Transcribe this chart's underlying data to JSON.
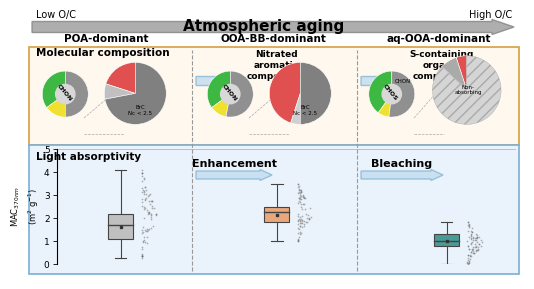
{
  "title": "Atmospheric aging",
  "low_oc": "Low O/C",
  "high_oc": "High O/C",
  "col1_label": "POA-dominant",
  "col2_label": "OOA-BB-dominant",
  "col3_label": "aq-OOA-dominant",
  "top_bg": "#fff8ee",
  "bottom_bg": "#eaf3fb",
  "top_border": "#d4a040",
  "bottom_border": "#7bafd4",
  "mol_comp_label": "Molecular composition",
  "light_abs_label": "Light absorptivity",
  "enhancement_label": "Enhancement",
  "bleaching_label": "Bleaching",
  "nitrated_label": "Nitrated\naromatic\ncompounds",
  "s_containing_label": "S-containing\norganic\ncompounds",
  "ylabel_top": "MAC₃₇₀nm(m² g⁻¹)",
  "box1": {
    "median": 1.7,
    "q1": 1.1,
    "q3": 2.2,
    "whisker_low": 0.25,
    "whisker_high": 4.1,
    "mean": 1.75,
    "color": "#c0c0c0"
  },
  "box2": {
    "median": 2.25,
    "q1": 1.85,
    "q3": 2.5,
    "whisker_low": 1.0,
    "whisker_high": 3.5,
    "mean": 2.2,
    "color": "#e8a87c"
  },
  "box3": {
    "median": 1.0,
    "q1": 0.8,
    "q3": 1.3,
    "whisker_low": 0.0,
    "whisker_high": 1.85,
    "mean": 1.05,
    "color": "#4a9a96"
  },
  "pie1_donut": {
    "sizes": [
      35,
      15,
      50
    ],
    "colors": [
      "#3cb843",
      "#f0e030",
      "#909090"
    ],
    "hole": 0.45
  },
  "pie1_full": {
    "sizes": [
      20,
      8,
      72
    ],
    "colors": [
      "#e05050",
      "#c0c0c0",
      "#808080"
    ]
  },
  "pie2_donut": {
    "sizes": [
      35,
      12,
      53
    ],
    "colors": [
      "#3cb843",
      "#f0e030",
      "#909090"
    ],
    "hole": 0.45
  },
  "pie2_full": {
    "sizes": [
      45,
      5,
      50
    ],
    "colors": [
      "#e05050",
      "#d0d0d0",
      "#808080"
    ]
  },
  "pie3_donut": {
    "sizes": [
      40,
      8,
      52
    ],
    "colors": [
      "#3cb843",
      "#f0e030",
      "#909090"
    ],
    "hole": 0.45
  },
  "pie3_full": {
    "sizes": [
      5,
      8,
      87
    ],
    "colors": [
      "#e05050",
      "#aaaaaa",
      "#d5d5d5"
    ]
  },
  "arrow_gray": "#a0a0a0",
  "arrow_blue": "#a0c8e8"
}
